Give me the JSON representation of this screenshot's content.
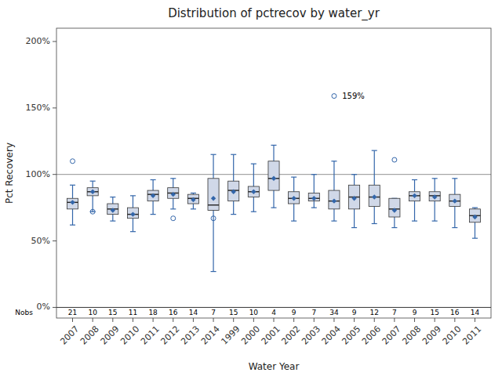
{
  "chart_data": {
    "type": "box",
    "title": "Distribution of pctrecov by water_yr",
    "x_label": "Water Year",
    "y_label": "Pct Recovery",
    "categories": [
      "2007",
      "2008",
      "2009",
      "2010",
      "2011",
      "2012",
      "2013",
      "2014",
      "1999",
      "2000",
      "2001",
      "2002",
      "2003",
      "2004",
      "2005",
      "2006",
      "2007",
      "2008",
      "2009",
      "2010",
      "2011"
    ],
    "whislo": [
      62,
      72,
      65,
      57,
      70,
      74,
      74,
      27,
      70,
      72,
      75,
      65,
      75,
      65,
      60,
      63,
      60,
      65,
      65,
      60,
      52
    ],
    "q1": [
      74,
      84,
      70,
      67,
      80,
      82,
      78,
      73,
      80,
      83,
      88,
      78,
      80,
      74,
      74,
      76,
      68,
      80,
      80,
      76,
      64
    ],
    "med": [
      79,
      87,
      74,
      70,
      85,
      86,
      82,
      77,
      88,
      87,
      97,
      82,
      82,
      80,
      83,
      83,
      74,
      84,
      84,
      80,
      69
    ],
    "q3": [
      82,
      90,
      78,
      75,
      88,
      90,
      85,
      97,
      95,
      91,
      110,
      87,
      86,
      88,
      92,
      92,
      82,
      87,
      87,
      85,
      74
    ],
    "whishi": [
      92,
      95,
      83,
      84,
      96,
      97,
      86,
      115,
      115,
      108,
      122,
      98,
      100,
      110,
      100,
      118,
      82,
      96,
      97,
      97,
      75
    ],
    "mean": [
      79,
      87,
      73,
      70,
      84,
      85,
      81,
      82,
      87,
      87,
      97,
      82,
      82,
      80,
      82,
      83,
      73,
      84,
      83,
      80,
      68
    ],
    "outliers": [
      [
        110
      ],
      [
        72
      ],
      [],
      [],
      [],
      [
        67
      ],
      [],
      [
        67
      ],
      [],
      [],
      [],
      [],
      [],
      [
        159
      ],
      [],
      [],
      [
        111
      ],
      [],
      [],
      [],
      []
    ],
    "nobs_label": "Nobs",
    "nobs": [
      21,
      10,
      15,
      11,
      18,
      16,
      14,
      7,
      15,
      10,
      4,
      9,
      7,
      34,
      9,
      12,
      7,
      9,
      15,
      16,
      14
    ],
    "annotations": [
      {
        "text": "159%",
        "y": 159,
        "index": 13
      }
    ],
    "reference_line": 100,
    "color": "#d0d8e8",
    "ylim": [
      -8,
      210
    ],
    "yticks": [
      {
        "value": 0,
        "label": "0%"
      },
      {
        "value": 50,
        "label": "50%"
      },
      {
        "value": 100,
        "label": "100%"
      },
      {
        "value": 150,
        "label": "150%"
      },
      {
        "value": 200,
        "label": "200%"
      }
    ],
    "grid": false
  }
}
